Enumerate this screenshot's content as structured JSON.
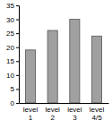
{
  "chart_data": {
    "type": "bar",
    "categories": [
      "level 1",
      "level 2",
      "level 3",
      "level 4/5"
    ],
    "values": [
      19,
      26,
      30,
      24
    ],
    "color": "#a0a0a0",
    "ylim": [
      0,
      35
    ],
    "yticks": [
      0,
      5,
      10,
      15,
      20,
      25,
      30,
      35
    ],
    "grid": false
  }
}
